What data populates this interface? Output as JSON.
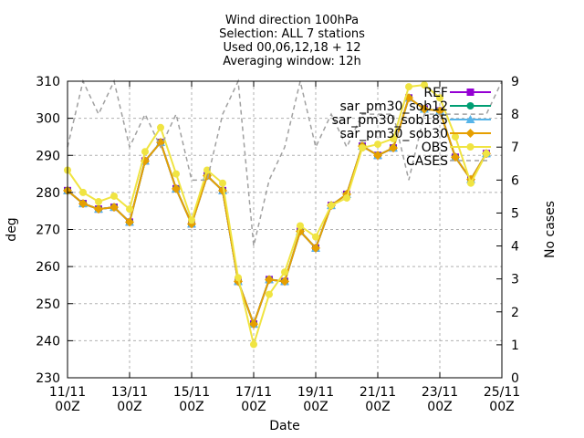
{
  "chart_data": {
    "type": "line",
    "title_lines": [
      "Wind direction 100hPa",
      "Selection: ALL      7 stations",
      "Used 00,06,12,18 + 12",
      "Averaging window: 12h"
    ],
    "xlabel": "Date",
    "ylabel": "deg",
    "y2label": "No cases",
    "xlim": [
      0,
      28
    ],
    "ylim": [
      230,
      310
    ],
    "y2lim": [
      0,
      9
    ],
    "x_ticks": [
      {
        "x": 0,
        "line1": "11/11",
        "line2": "00Z"
      },
      {
        "x": 4,
        "line1": "13/11",
        "line2": "00Z"
      },
      {
        "x": 8,
        "line1": "15/11",
        "line2": "00Z"
      },
      {
        "x": 12,
        "line1": "17/11",
        "line2": "00Z"
      },
      {
        "x": 16,
        "line1": "19/11",
        "line2": "00Z"
      },
      {
        "x": 20,
        "line1": "21/11",
        "line2": "00Z"
      },
      {
        "x": 24,
        "line1": "23/11",
        "line2": "00Z"
      },
      {
        "x": 28,
        "line1": "25/11",
        "line2": "00Z"
      }
    ],
    "y_ticks": [
      230,
      240,
      250,
      260,
      270,
      280,
      290,
      300,
      310
    ],
    "y2_ticks": [
      0,
      1,
      2,
      3,
      4,
      5,
      6,
      7,
      8,
      9
    ],
    "legend_position": "top-right",
    "legend": [
      "REF",
      "sar_pm30_sob12",
      "sar_pm30_sob185",
      "sar_pm30_sob30",
      "OBS",
      "CASES"
    ],
    "series": [
      {
        "name": "REF",
        "color": "#9400d3",
        "marker": "filled-square",
        "x": [
          0,
          1,
          2,
          3,
          4,
          5,
          6,
          7,
          8,
          9,
          10,
          11,
          12,
          13,
          14,
          15,
          16,
          17,
          18,
          19,
          20,
          21,
          22,
          23,
          24,
          25,
          26,
          27
        ],
        "values": [
          280.5,
          277,
          275.5,
          276,
          272,
          288.5,
          293.5,
          281,
          271.5,
          284.5,
          280.5,
          256,
          244.5,
          256.5,
          256,
          269.5,
          265,
          276.5,
          279.5,
          292.5,
          290,
          292,
          305.5,
          302.5,
          302,
          289.5,
          283.5,
          290.5
        ]
      },
      {
        "name": "sar_pm30_sob12",
        "color": "#009e73",
        "marker": "filled-circle",
        "x": [
          0,
          1,
          2,
          3,
          4,
          5,
          6,
          7,
          8,
          9,
          10,
          11,
          12,
          13,
          14,
          15,
          16,
          17,
          18,
          19,
          20,
          21,
          22,
          23,
          24,
          25,
          26,
          27
        ],
        "values": [
          280.5,
          277,
          275.5,
          276,
          272,
          288.5,
          293.5,
          281,
          271.5,
          284.5,
          280.5,
          256,
          244.5,
          256.5,
          256,
          269.5,
          265,
          276.5,
          279.5,
          292.5,
          290,
          292,
          305.5,
          302.5,
          302,
          289.5,
          283.5,
          290.5
        ]
      },
      {
        "name": "sar_pm30_sob185",
        "color": "#56b4e9",
        "marker": "filled-triangle",
        "x": [
          0,
          1,
          2,
          3,
          4,
          5,
          6,
          7,
          8,
          9,
          10,
          11,
          12,
          13,
          14,
          15,
          16,
          17,
          18,
          19,
          20,
          21,
          22,
          23,
          24,
          25,
          26,
          27
        ],
        "values": [
          280.5,
          277,
          275.5,
          276,
          272,
          288.5,
          293.5,
          281,
          271.5,
          284.5,
          280.5,
          256,
          244.5,
          256.5,
          256,
          269.5,
          265,
          276.5,
          279.5,
          292.5,
          290,
          292,
          305.5,
          302.5,
          302,
          289.5,
          283.5,
          290.5
        ]
      },
      {
        "name": "sar_pm30_sob30",
        "color": "#e69f00",
        "marker": "filled-diamond",
        "x": [
          0,
          1,
          2,
          3,
          4,
          5,
          6,
          7,
          8,
          9,
          10,
          11,
          12,
          13,
          14,
          15,
          16,
          17,
          18,
          19,
          20,
          21,
          22,
          23,
          24,
          25,
          26,
          27
        ],
        "values": [
          280.5,
          277,
          275.5,
          276,
          272,
          288.5,
          293.5,
          281,
          271.5,
          284.5,
          280.5,
          256,
          244.5,
          256.5,
          256,
          269.5,
          265,
          276.5,
          279.5,
          292.5,
          290,
          292,
          305.5,
          302.5,
          302,
          289.5,
          283.5,
          290.5
        ]
      },
      {
        "name": "OBS",
        "color": "#f0e442",
        "marker": "filled-circle",
        "x": [
          0,
          1,
          2,
          3,
          4,
          5,
          6,
          7,
          8,
          9,
          10,
          11,
          12,
          13,
          14,
          15,
          16,
          17,
          18,
          19,
          20,
          21,
          22,
          23,
          24,
          25,
          26,
          27
        ],
        "values": [
          286,
          280,
          277.5,
          279,
          275.5,
          291,
          297.5,
          285,
          272.5,
          286,
          282.5,
          257,
          239,
          252.5,
          258.5,
          271,
          268,
          276.5,
          278.5,
          292,
          293,
          294.5,
          308.5,
          309,
          305.5,
          295,
          282.5,
          290.5
        ]
      },
      {
        "name": "CASES",
        "axis": "y2",
        "color": "#a0a0a0",
        "dash": true,
        "x": [
          0,
          1,
          2,
          3,
          4,
          5,
          6,
          7,
          8,
          9,
          10,
          11,
          12,
          13,
          14,
          15,
          16,
          17,
          18,
          19,
          20,
          21,
          22,
          23,
          24,
          25,
          26,
          27,
          28
        ],
        "values": [
          7,
          9,
          8,
          9,
          7,
          8,
          7,
          8,
          6,
          6,
          8,
          9,
          4,
          6,
          7,
          9,
          7,
          8,
          7,
          8,
          8,
          8,
          6,
          8,
          8,
          8,
          8,
          8,
          9
        ]
      }
    ]
  }
}
